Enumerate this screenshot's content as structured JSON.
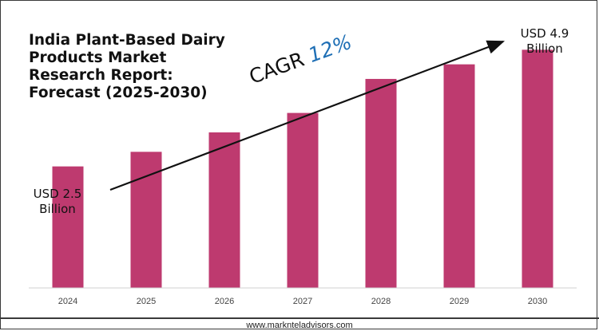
{
  "chart_data": {
    "type": "bar",
    "title": "India Plant-Based Dairy Products Market Research Report: Forecast (2025-2030)",
    "categories": [
      "2024",
      "2025",
      "2026",
      "2027",
      "2028",
      "2029",
      "2030"
    ],
    "series": [
      {
        "values": [
          2.5,
          2.8,
          3.2,
          3.6,
          4.3,
          4.6,
          4.9
        ]
      }
    ],
    "ylim": [
      0,
      5.3
    ],
    "bar_color": "#be3a6f",
    "grid": false,
    "annotations": {
      "start": "USD 2.5 Billion",
      "end": "USD 4.9 Billion",
      "cagr_label": "CAGR",
      "cagr_value": "12%"
    }
  },
  "footer": {
    "website": "www.marknteladvisors.com"
  },
  "colors": {
    "bar": "#be3a6f",
    "cagr": "#1f6fb5",
    "arrow": "#111111"
  }
}
